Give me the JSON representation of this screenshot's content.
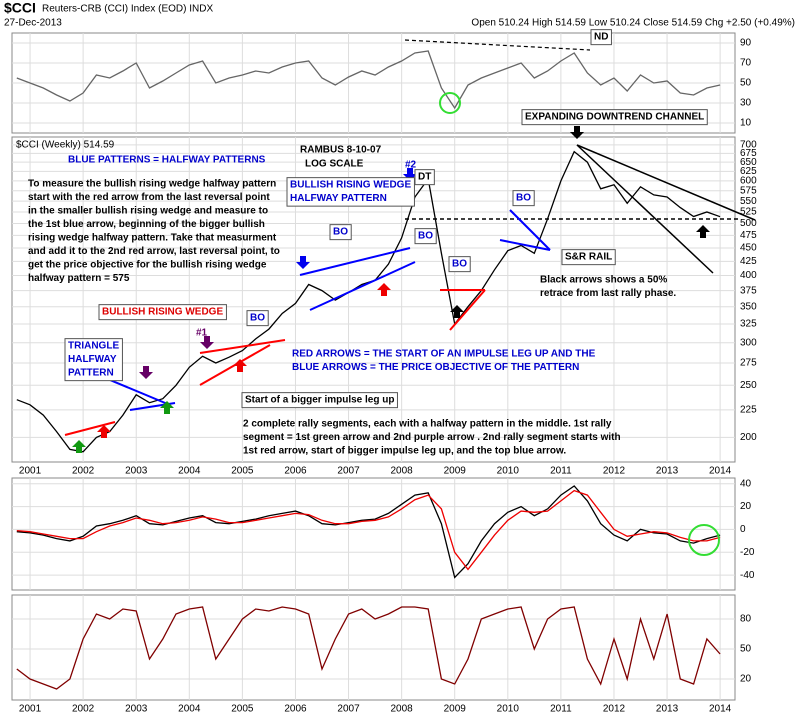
{
  "header": {
    "symbol": "$CCI",
    "name": "Reuters-CRB (CCI) Index (EOD) INDX",
    "date": "27-Dec-2013",
    "quote": "Open 510.24  High 514.59  Low 510.24  Close 514.59  Chg +2.50 (+0.49%)"
  },
  "chart_data": [
    {
      "type": "line",
      "x": [
        2000.75,
        2001,
        2001.25,
        2001.5,
        2001.75,
        2002,
        2002.25,
        2002.5,
        2002.75,
        2003,
        2003.25,
        2003.5,
        2003.75,
        2004,
        2004.25,
        2004.5,
        2004.75,
        2005,
        2005.25,
        2005.5,
        2005.75,
        2006,
        2006.25,
        2006.5,
        2006.75,
        2007,
        2007.25,
        2007.5,
        2007.75,
        2008,
        2008.25,
        2008.5,
        2008.75,
        2009,
        2009.25,
        2009.5,
        2009.75,
        2010,
        2010.25,
        2010.5,
        2010.75,
        2011,
        2011.25,
        2011.5,
        2011.75,
        2012,
        2012.25,
        2012.5,
        2012.75,
        2013,
        2013.25,
        2013.5,
        2013.75,
        2014
      ],
      "series": [
        {
          "color": "#666666",
          "values": [
            55,
            50,
            45,
            38,
            32,
            40,
            58,
            55,
            62,
            70,
            45,
            52,
            60,
            68,
            72,
            50,
            55,
            58,
            62,
            60,
            66,
            70,
            72,
            55,
            48,
            56,
            62,
            58,
            66,
            72,
            80,
            82,
            45,
            25,
            48,
            55,
            60,
            65,
            70,
            55,
            62,
            72,
            80,
            60,
            48,
            55,
            42,
            58,
            50,
            52,
            40,
            38,
            45,
            48
          ]
        }
      ],
      "xlim": [
        2000.66,
        2014.28
      ],
      "ylim": [
        0,
        100
      ],
      "yticks": [
        10,
        30,
        50,
        70,
        90
      ],
      "grid": true
    },
    {
      "type": "line",
      "legend": "$CCI (Weekly) 514.59",
      "log_scale": true,
      "x": [
        2000.75,
        2001,
        2001.25,
        2001.5,
        2001.75,
        2002,
        2002.25,
        2002.5,
        2002.75,
        2003,
        2003.25,
        2003.5,
        2003.75,
        2004,
        2004.25,
        2004.5,
        2004.75,
        2005,
        2005.25,
        2005.5,
        2005.75,
        2006,
        2006.25,
        2006.5,
        2006.75,
        2007,
        2007.25,
        2007.5,
        2007.75,
        2008,
        2008.25,
        2008.5,
        2008.75,
        2009,
        2009.25,
        2009.5,
        2009.75,
        2010,
        2010.25,
        2010.5,
        2010.75,
        2011,
        2011.25,
        2011.5,
        2011.75,
        2012,
        2012.25,
        2012.5,
        2012.75,
        2013,
        2013.25,
        2013.5,
        2013.75,
        2014
      ],
      "series": [
        {
          "color": "#000000",
          "values": [
            235,
            230,
            220,
            205,
            190,
            188,
            200,
            205,
            220,
            240,
            232,
            236,
            250,
            270,
            283,
            275,
            282,
            290,
            305,
            318,
            340,
            355,
            385,
            375,
            360,
            372,
            385,
            392,
            420,
            470,
            560,
            605,
            440,
            325,
            350,
            375,
            410,
            445,
            455,
            440,
            510,
            600,
            680,
            650,
            580,
            590,
            545,
            585,
            565,
            560,
            535,
            515,
            525,
            514.59
          ]
        }
      ],
      "xlim": [
        2000.66,
        2014.28
      ],
      "xticks": [
        2001,
        2002,
        2003,
        2004,
        2005,
        2006,
        2007,
        2008,
        2009,
        2010,
        2011,
        2012,
        2013,
        2014
      ],
      "ylim": [
        180,
        724
      ],
      "yticks": [
        200,
        225,
        250,
        275,
        300,
        325,
        350,
        375,
        400,
        425,
        450,
        475,
        500,
        525,
        550,
        575,
        600,
        625,
        650,
        675,
        700
      ],
      "grid": true,
      "annotations": [
        {
          "lines": [
            "RAMBUS 8-10-07"
          ],
          "color": "#000000"
        },
        {
          "lines": [
            "LOG SCALE"
          ],
          "color": "#000000"
        },
        {
          "lines": [
            "BLUE PATTERNS = HALFWAY PATTERNS"
          ],
          "color": "#0000cc"
        },
        {
          "lines": [
            "To measure the bullish rising wedge halfway pattern",
            "start with the red arrow from the last reversal point",
            "in the smaller bullish rising wedge and measure to",
            "the 1st blue arrow, beginning of the bigger bullish",
            "rising wedge halfway pattern.  Take that measurment",
            "and add it to the 2nd red arrow, last reversal point, to",
            "get the price objective for the bullish rising wedge",
            "halfway pattern = 575"
          ],
          "color": "#000000"
        },
        {
          "lines": [
            "BULLISH RISING WEDGE",
            "HALFWAY PATTERN"
          ],
          "color": "#0000cc",
          "boxed": true
        },
        {
          "lines": [
            "BULLISH RISING WEDGE"
          ],
          "color": "#dd0000",
          "boxed": true
        },
        {
          "lines": [
            "TRIANGLE",
            "HALFWAY",
            "PATTERN"
          ],
          "color": "#0000cc",
          "boxed": true
        },
        {
          "lines": [
            "#1"
          ],
          "color": "#660066"
        },
        {
          "lines": [
            "#2"
          ],
          "color": "#0000cc"
        },
        {
          "lines": [
            "DT"
          ],
          "color": "#000000",
          "boxed": true
        },
        {
          "lines": [
            "ND"
          ],
          "color": "#000000",
          "boxed": true
        },
        {
          "lines": [
            "BO"
          ],
          "color": "#0000cc",
          "boxed": true
        },
        {
          "lines": [
            "BO"
          ],
          "color": "#0000cc",
          "boxed": true
        },
        {
          "lines": [
            "BO"
          ],
          "color": "#0000cc",
          "boxed": true
        },
        {
          "lines": [
            "BO"
          ],
          "color": "#0000cc",
          "boxed": true
        },
        {
          "lines": [
            "BO"
          ],
          "color": "#0000cc",
          "boxed": true
        },
        {
          "lines": [
            "EXPANDING DOWNTREND CHANNEL"
          ],
          "color": "#000000",
          "boxed": true
        },
        {
          "lines": [
            "S&R RAIL"
          ],
          "color": "#000000",
          "boxed": true
        },
        {
          "lines": [
            "Black arrows shows a 50%",
            "retrace from last rally phase."
          ],
          "color": "#000000"
        },
        {
          "lines": [
            "RED ARROWS = THE START OF AN IMPULSE LEG UP AND THE",
            "BLUE ARROWS = THE PRICE OBJECTIVE OF THE PATTERN"
          ],
          "color": "#0000cc"
        },
        {
          "lines": [
            "Start of a bigger impulse leg up"
          ],
          "color": "#000000",
          "boxed": true
        },
        {
          "lines": [
            "2 complete rally segments, each with a halfway pattern in the middle. 1st rally",
            "segment = 1st green arrow and 2nd purple arrow . 2nd rally segment starts with",
            "1st red arrow, start of bigger impulse leg up, and the top blue arrow."
          ],
          "color": "#000000"
        }
      ]
    },
    {
      "type": "line",
      "x": [
        2000.75,
        2001,
        2001.25,
        2001.5,
        2001.75,
        2002,
        2002.25,
        2002.5,
        2002.75,
        2003,
        2003.25,
        2003.5,
        2003.75,
        2004,
        2004.25,
        2004.5,
        2004.75,
        2005,
        2005.25,
        2005.5,
        2005.75,
        2006,
        2006.25,
        2006.5,
        2006.75,
        2007,
        2007.25,
        2007.5,
        2007.75,
        2008,
        2008.25,
        2008.5,
        2008.75,
        2009,
        2009.25,
        2009.5,
        2009.75,
        2010,
        2010.25,
        2010.5,
        2010.75,
        2011,
        2011.25,
        2011.5,
        2011.75,
        2012,
        2012.25,
        2012.5,
        2012.75,
        2013,
        2013.25,
        2013.5,
        2013.75,
        2014
      ],
      "series": [
        {
          "color": "#000000",
          "values": [
            -2,
            -3,
            -5,
            -8,
            -10,
            -6,
            3,
            5,
            8,
            12,
            5,
            4,
            7,
            10,
            12,
            6,
            5,
            7,
            9,
            12,
            14,
            16,
            12,
            5,
            4,
            6,
            8,
            9,
            14,
            22,
            30,
            32,
            5,
            -42,
            -30,
            -10,
            5,
            15,
            20,
            12,
            18,
            30,
            38,
            25,
            5,
            -5,
            -10,
            0,
            -3,
            -4,
            -10,
            -12,
            -8,
            -5
          ]
        },
        {
          "color": "#ee0000",
          "values": [
            -1,
            -2,
            -4,
            -6,
            -8,
            -8,
            -2,
            3,
            6,
            10,
            8,
            5,
            6,
            8,
            11,
            9,
            6,
            6,
            8,
            10,
            12,
            14,
            13,
            8,
            5,
            5,
            7,
            8,
            11,
            18,
            26,
            30,
            18,
            -20,
            -35,
            -20,
            -5,
            8,
            16,
            15,
            16,
            25,
            34,
            30,
            15,
            0,
            -6,
            -4,
            -2,
            -3,
            -7,
            -10,
            -10,
            -7
          ]
        }
      ],
      "xlim": [
        2000.66,
        2014.28
      ],
      "ylim": [
        -53,
        45
      ],
      "yticks": [
        -40,
        -20,
        0,
        20,
        40
      ],
      "grid": true
    },
    {
      "type": "line",
      "x": [
        2000.75,
        2001,
        2001.25,
        2001.5,
        2001.75,
        2002,
        2002.25,
        2002.5,
        2002.75,
        2003,
        2003.25,
        2003.5,
        2003.75,
        2004,
        2004.25,
        2004.5,
        2004.75,
        2005,
        2005.25,
        2005.5,
        2005.75,
        2006,
        2006.25,
        2006.5,
        2006.75,
        2007,
        2007.25,
        2007.5,
        2007.75,
        2008,
        2008.25,
        2008.5,
        2008.75,
        2009,
        2009.25,
        2009.5,
        2009.75,
        2010,
        2010.25,
        2010.5,
        2010.75,
        2011,
        2011.25,
        2011.5,
        2011.75,
        2012,
        2012.25,
        2012.5,
        2012.75,
        2013,
        2013.25,
        2013.5,
        2013.75,
        2014
      ],
      "series": [
        {
          "color": "#800000",
          "values": [
            30,
            20,
            15,
            10,
            20,
            60,
            85,
            80,
            90,
            88,
            40,
            60,
            85,
            90,
            92,
            40,
            60,
            80,
            90,
            88,
            92,
            90,
            85,
            30,
            60,
            85,
            90,
            80,
            85,
            92,
            92,
            90,
            20,
            15,
            40,
            80,
            85,
            90,
            92,
            50,
            80,
            90,
            92,
            40,
            15,
            60,
            20,
            80,
            40,
            85,
            20,
            15,
            60,
            45
          ]
        }
      ],
      "xlim": [
        2000.66,
        2014.28
      ],
      "xticks": [
        2001,
        2002,
        2003,
        2004,
        2005,
        2006,
        2007,
        2008,
        2009,
        2010,
        2011,
        2012,
        2013,
        2014
      ],
      "ylim": [
        -1,
        104
      ],
      "yticks": [
        20,
        50,
        80
      ],
      "grid": true
    }
  ]
}
